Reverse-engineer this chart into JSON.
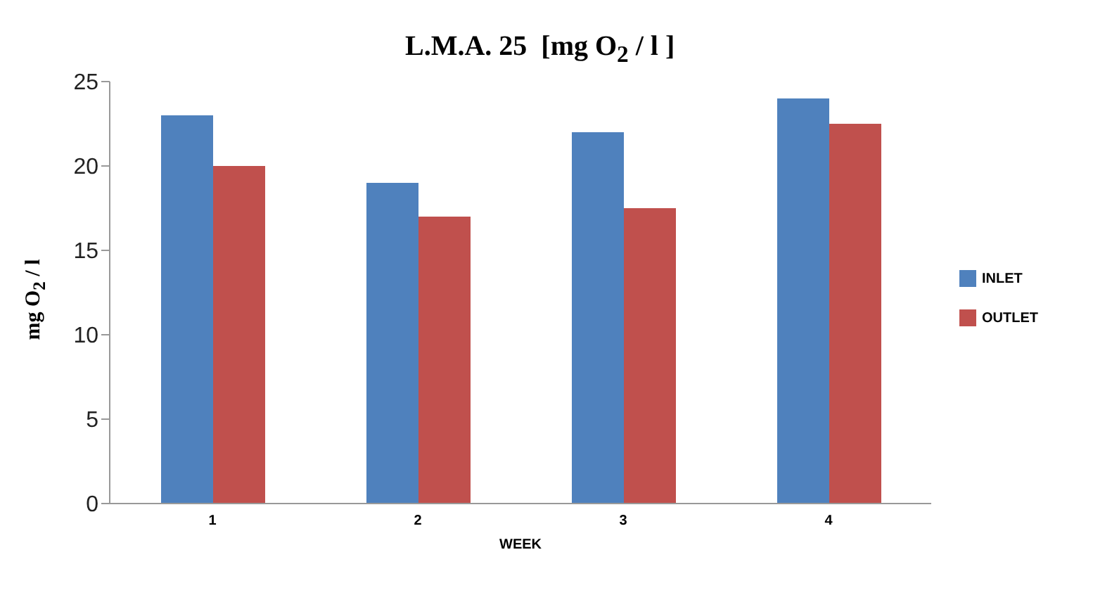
{
  "chart_data": {
    "type": "bar",
    "title": "L.M.A. 25  [mg O$_{2}$ / l ]",
    "xlabel": "WEEK",
    "ylabel": "mg O$_{2}$ / l",
    "categories": [
      "1",
      "2",
      "3",
      "4"
    ],
    "series": [
      {
        "name": "INLET",
        "color": "#4f81bd",
        "values": [
          23,
          19,
          22,
          24
        ]
      },
      {
        "name": "OUTLET",
        "color": "#c0504d",
        "values": [
          20,
          17,
          17.5,
          22.5
        ]
      }
    ],
    "ylim": [
      0,
      25
    ],
    "yticks": [
      0,
      5,
      10,
      15,
      20,
      25
    ],
    "grid": false,
    "legend": "right"
  }
}
